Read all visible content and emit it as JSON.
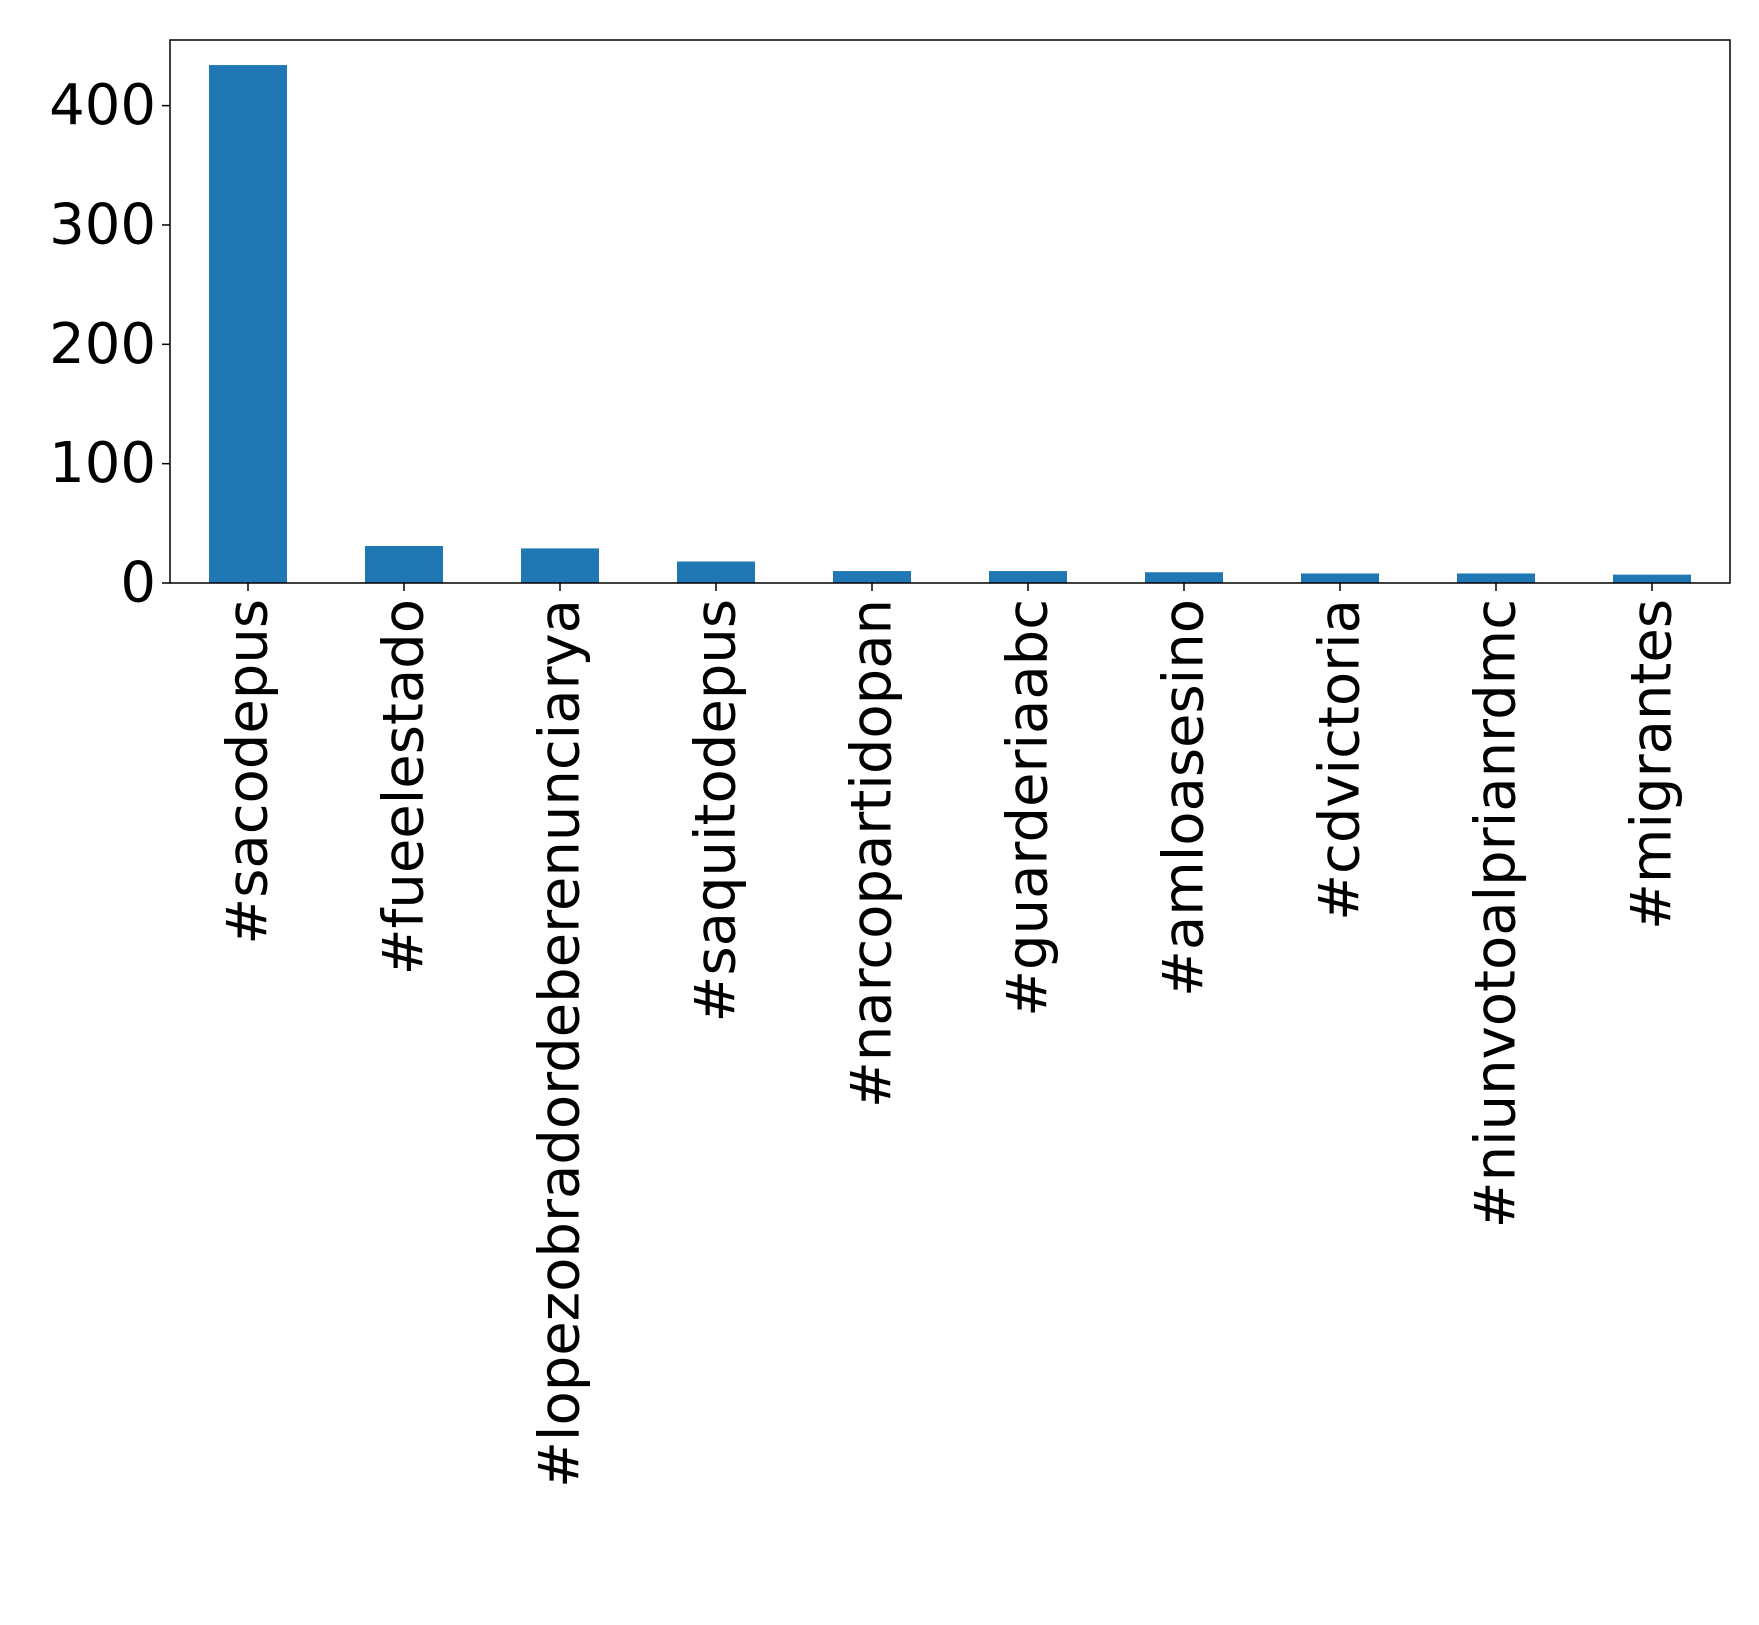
{
  "chart_data": {
    "type": "bar",
    "categories": [
      "#sacodepus",
      "#fueelestado",
      "#lopezobradordeberenunciarya",
      "#saquitodepus",
      "#narcopartidopan",
      "#guarderiaabc",
      "#amloasesino",
      "#cdvictoria",
      "#niunvotoalprianrdmc",
      "#migrantes"
    ],
    "values": [
      434,
      31,
      29,
      18,
      10,
      10,
      9,
      8,
      8,
      7
    ],
    "yticks": [
      "0",
      "100",
      "200",
      "300",
      "400"
    ],
    "ylim": [
      0,
      455
    ],
    "title": "",
    "xlabel": "",
    "ylabel": "",
    "bar_color": "#1f77b4",
    "grid": false,
    "legend": "none"
  }
}
